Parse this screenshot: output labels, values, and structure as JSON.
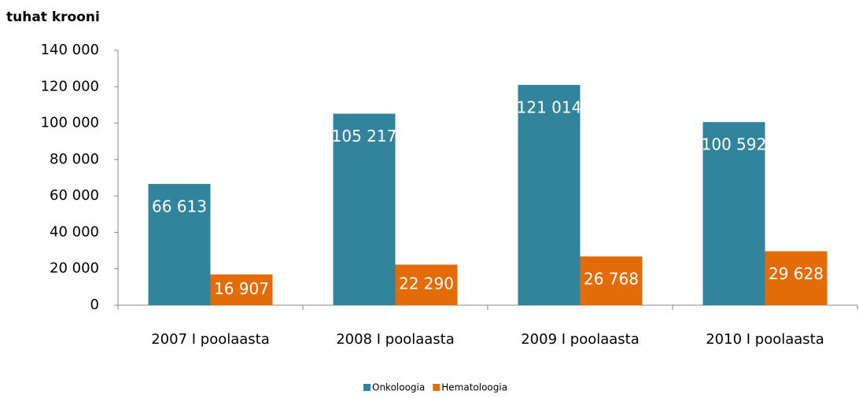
{
  "chart_data": {
    "type": "bar",
    "title": "tuhat krooni",
    "categories": [
      "2007 I poolaasta",
      "2008 I poolaasta",
      "2009 I poolaasta",
      "2010 I poolaasta"
    ],
    "series": [
      {
        "name": "Onkoloogia",
        "color": "#31849b",
        "values": [
          66613,
          105217,
          121014,
          100592
        ],
        "value_labels": [
          "66 613",
          "105 217",
          "121 014",
          "100 592"
        ]
      },
      {
        "name": "Hematoloogia",
        "color": "#e36c09",
        "values": [
          16907,
          22290,
          26768,
          29628
        ],
        "value_labels": [
          "16 907",
          "22 290",
          "26 768",
          "29 628"
        ]
      }
    ],
    "ylim": [
      0,
      140000
    ],
    "yticks": [
      0,
      {
        "value": 20000,
        "label": "20 000"
      },
      {
        "value": 40000,
        "label": "40 000"
      },
      {
        "value": 60000,
        "label": "60 000"
      },
      {
        "value": 80000,
        "label": "80 000"
      },
      {
        "value": 100000,
        "label": "100 000"
      },
      {
        "value": 120000,
        "label": "120 000"
      },
      {
        "value": 140000,
        "label": "140 000"
      }
    ],
    "grid": false,
    "legend": "bottom"
  }
}
